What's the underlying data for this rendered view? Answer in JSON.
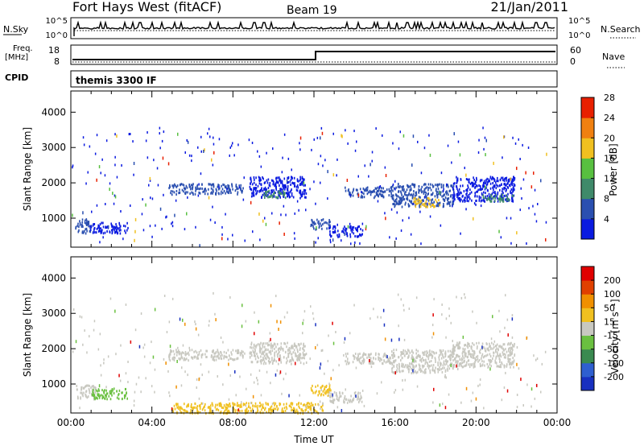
{
  "header": {
    "title": "Fort Hays West (fitACF)",
    "beam": "Beam 19",
    "date": "21/Jan/2011"
  },
  "side_labels": {
    "nsky": "N.Sky",
    "freq_line1": "Freq.",
    "freq_line2": "[MHz]",
    "cpid": "CPID",
    "nsearch": "N.Search",
    "nave": "Nave",
    "cpid_value": "themis 3300 IF"
  },
  "noise_panel": {
    "left_ticks": [
      "10^5",
      "10^0"
    ],
    "right_ticks": [
      "10^5",
      "10^0"
    ]
  },
  "freq_panel": {
    "left_ticks": [
      "18",
      "8"
    ],
    "right_ticks": [
      "60",
      "0"
    ],
    "freq_step_time_hours": 12.0
  },
  "power_colorbar": {
    "label": "Power [dB]",
    "ticks": [
      "4",
      "8",
      "12",
      "16",
      "20",
      "24",
      "28"
    ],
    "colors": [
      "#0a1ae0",
      "#2a4fb0",
      "#3f8a6a",
      "#58c040",
      "#f0c020",
      "#f08010",
      "#e82000"
    ]
  },
  "velocity_colorbar": {
    "label": "Velocity [m s⁻¹]",
    "ticks": [
      "200",
      "100",
      "50",
      "15",
      "-15",
      "-50",
      "-100",
      "-200"
    ],
    "colors": [
      "#1830c0",
      "#2f5fd0",
      "#3a8a50",
      "#6ac040",
      "#c8c8c0",
      "#f0c020",
      "#f09000",
      "#e04000",
      "#e00000"
    ]
  },
  "chart_data": [
    {
      "type": "scatter",
      "panel": "power",
      "xlabel": "",
      "ylabel": "Slant Range [km]",
      "y_ticks": [
        "1000",
        "2000",
        "3000",
        "4000"
      ],
      "ylim": [
        180,
        4600
      ],
      "xlim_hours": [
        0,
        24
      ],
      "bands": [
        {
          "start_h": 0.2,
          "end_h": 1.0,
          "range_low": 600,
          "range_high": 1000,
          "color": "#2a4fb0"
        },
        {
          "start_h": 0.9,
          "end_h": 2.8,
          "range_low": 600,
          "range_high": 900,
          "color": "#0a1ae0"
        },
        {
          "start_h": 4.8,
          "end_h": 8.5,
          "range_low": 1700,
          "range_high": 2000,
          "color": "#2a4fb0"
        },
        {
          "start_h": 8.8,
          "end_h": 11.6,
          "range_low": 1600,
          "range_high": 2200,
          "color": "#0a1ae0"
        },
        {
          "start_h": 9.5,
          "end_h": 10.6,
          "range_low": 1600,
          "range_high": 1800,
          "color": "#3f8a6a"
        },
        {
          "start_h": 11.8,
          "end_h": 12.8,
          "range_low": 700,
          "range_high": 1000,
          "color": "#2a4fb0"
        },
        {
          "start_h": 12.7,
          "end_h": 14.4,
          "range_low": 500,
          "range_high": 800,
          "color": "#0a1ae0"
        },
        {
          "start_h": 13.5,
          "end_h": 15.8,
          "range_low": 1600,
          "range_high": 1900,
          "color": "#2a4fb0"
        },
        {
          "start_h": 15.8,
          "end_h": 18.9,
          "range_low": 1350,
          "range_high": 2000,
          "color": "#2a4fb0"
        },
        {
          "start_h": 16.9,
          "end_h": 18.2,
          "range_low": 1350,
          "range_high": 1600,
          "color": "#f0c020"
        },
        {
          "start_h": 18.8,
          "end_h": 21.9,
          "range_low": 1500,
          "range_high": 2200,
          "color": "#0a1ae0"
        },
        {
          "start_h": 20.3,
          "end_h": 21.8,
          "range_low": 1500,
          "range_high": 1700,
          "color": "#3f8a6a"
        }
      ]
    },
    {
      "type": "scatter",
      "panel": "velocity",
      "xlabel": "Time UT",
      "ylabel": "Slant Range [km]",
      "x_ticks": [
        "00:00",
        "04:00",
        "08:00",
        "12:00",
        "16:00",
        "20:00",
        "00:00"
      ],
      "y_ticks": [
        "1000",
        "2000",
        "3000",
        "4000"
      ],
      "ylim": [
        180,
        4600
      ],
      "xlim_hours": [
        0,
        24
      ],
      "bands": [
        {
          "start_h": 0.2,
          "end_h": 1.2,
          "range_low": 600,
          "range_high": 1000,
          "color": "#c8c8c0"
        },
        {
          "start_h": 1.0,
          "end_h": 2.8,
          "range_low": 600,
          "range_high": 900,
          "color": "#6ac040"
        },
        {
          "start_h": 4.8,
          "end_h": 8.5,
          "range_low": 1700,
          "range_high": 2000,
          "color": "#c8c8c0"
        },
        {
          "start_h": 8.8,
          "end_h": 11.6,
          "range_low": 1600,
          "range_high": 2200,
          "color": "#c8c8c0"
        },
        {
          "start_h": 11.8,
          "end_h": 12.8,
          "range_low": 700,
          "range_high": 1000,
          "color": "#f0c020"
        },
        {
          "start_h": 12.7,
          "end_h": 14.4,
          "range_low": 500,
          "range_high": 800,
          "color": "#c8c8c0"
        },
        {
          "start_h": 13.5,
          "end_h": 15.8,
          "range_low": 1600,
          "range_high": 1900,
          "color": "#c8c8c0"
        },
        {
          "start_h": 15.8,
          "end_h": 18.9,
          "range_low": 1350,
          "range_high": 2000,
          "color": "#c8c8c0"
        },
        {
          "start_h": 18.8,
          "end_h": 21.9,
          "range_low": 1500,
          "range_high": 2200,
          "color": "#c8c8c0"
        },
        {
          "start_h": 5.0,
          "end_h": 12.5,
          "range_low": 200,
          "range_high": 500,
          "color": "#f0c020"
        }
      ]
    }
  ]
}
